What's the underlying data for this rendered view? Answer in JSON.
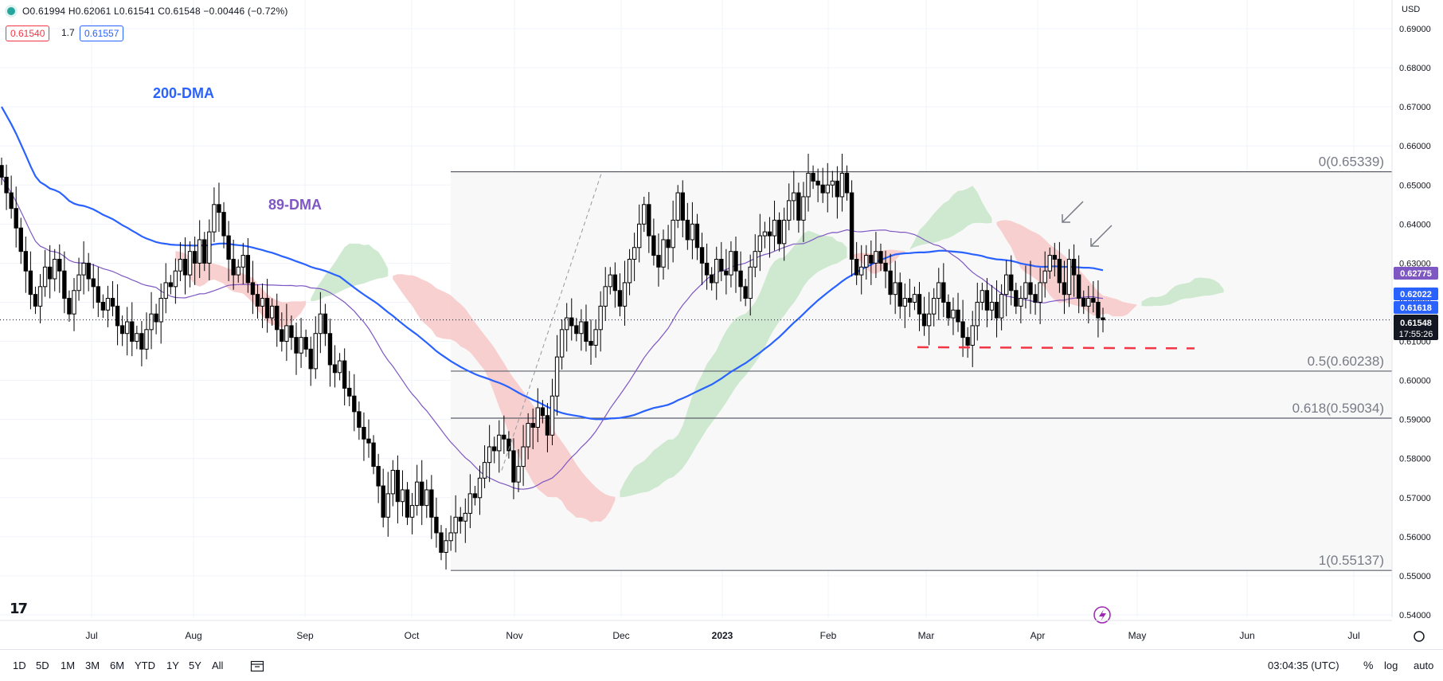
{
  "header": {
    "ohlc": "O0.61994 H0.62061 L0.61541 C0.61548 −0.00446 (−0.72%)",
    "bid": "0.61540",
    "spread": "1.7",
    "ask": "0.61557",
    "currency": "USD"
  },
  "range_buttons": [
    "1D",
    "5D",
    "1M",
    "3M",
    "6M",
    "YTD",
    "1Y",
    "5Y",
    "All"
  ],
  "clock": "03:04:35 (UTC)",
  "scale_buttons": {
    "percent": "%",
    "log": "log",
    "auto": "auto"
  },
  "colors": {
    "up_candle": "#ffffff",
    "down_candle": "#000000",
    "dma200": "#2962ff",
    "dma89": "#7e57c2",
    "cloud_bear": "#f8c8c8",
    "cloud_bull": "#c8e6c9",
    "fib_line": "#787b86",
    "support_line": "#f23645"
  },
  "chart_data": {
    "type": "candlestick",
    "symbol_quote": "USD",
    "ylim": [
      0.54,
      0.692
    ],
    "y_ticks": [
      "0.69000",
      "0.68000",
      "0.67000",
      "0.66000",
      "0.65000",
      "0.64000",
      "0.63000",
      "0.62000",
      "0.61000",
      "0.60000",
      "0.59000",
      "0.58000",
      "0.57000",
      "0.56000",
      "0.55000",
      "0.54000"
    ],
    "x_ticks": [
      "Jul",
      "Aug",
      "Sep",
      "Oct",
      "Nov",
      "Dec",
      "2023",
      "Feb",
      "Mar",
      "Apr",
      "May",
      "Jun",
      "Jul"
    ],
    "x_range": [
      "2022-06-01",
      "2023-07-15"
    ],
    "annotations": {
      "dma200_label": "200-DMA",
      "dma89_label": "89-DMA"
    },
    "fibonacci": [
      {
        "label": "0(0.65339)",
        "value": 0.65339
      },
      {
        "label": "0.5(0.60238)",
        "value": 0.60238
      },
      {
        "label": "0.618(0.59034)",
        "value": 0.59034
      },
      {
        "label": "1(0.55137)",
        "value": 0.55137
      }
    ],
    "price_labels": [
      {
        "value": "0.62775",
        "kind": "dma89"
      },
      {
        "value": "0.62022",
        "kind": "cloud"
      },
      {
        "value": "0.61618",
        "kind": "dma200"
      },
      {
        "value": "0.61548",
        "kind": "last"
      },
      {
        "value": "17:55:26",
        "kind": "countdown"
      }
    ],
    "last_price": 0.61548,
    "support_level": 0.6085,
    "candles_close": [
      0.652,
      0.648,
      0.644,
      0.639,
      0.633,
      0.628,
      0.622,
      0.619,
      0.624,
      0.629,
      0.626,
      0.631,
      0.628,
      0.621,
      0.617,
      0.623,
      0.627,
      0.63,
      0.626,
      0.624,
      0.62,
      0.618,
      0.621,
      0.619,
      0.614,
      0.612,
      0.615,
      0.61,
      0.612,
      0.608,
      0.613,
      0.617,
      0.615,
      0.621,
      0.625,
      0.624,
      0.628,
      0.631,
      0.627,
      0.633,
      0.63,
      0.636,
      0.63,
      0.638,
      0.645,
      0.643,
      0.637,
      0.631,
      0.627,
      0.629,
      0.632,
      0.625,
      0.622,
      0.619,
      0.621,
      0.616,
      0.619,
      0.613,
      0.61,
      0.614,
      0.611,
      0.607,
      0.611,
      0.608,
      0.603,
      0.612,
      0.617,
      0.612,
      0.604,
      0.602,
      0.605,
      0.598,
      0.596,
      0.592,
      0.588,
      0.585,
      0.584,
      0.578,
      0.573,
      0.565,
      0.571,
      0.577,
      0.569,
      0.572,
      0.565,
      0.568,
      0.574,
      0.568,
      0.572,
      0.565,
      0.561,
      0.556,
      0.559,
      0.561,
      0.565,
      0.564,
      0.566,
      0.571,
      0.57,
      0.575,
      0.579,
      0.583,
      0.582,
      0.586,
      0.585,
      0.582,
      0.574,
      0.578,
      0.583,
      0.589,
      0.588,
      0.593,
      0.591,
      0.586,
      0.596,
      0.606,
      0.613,
      0.616,
      0.614,
      0.612,
      0.615,
      0.61,
      0.609,
      0.613,
      0.619,
      0.624,
      0.627,
      0.623,
      0.619,
      0.625,
      0.631,
      0.634,
      0.64,
      0.645,
      0.637,
      0.632,
      0.629,
      0.636,
      0.634,
      0.641,
      0.648,
      0.641,
      0.636,
      0.64,
      0.634,
      0.63,
      0.627,
      0.625,
      0.631,
      0.628,
      0.627,
      0.633,
      0.628,
      0.624,
      0.621,
      0.629,
      0.633,
      0.637,
      0.638,
      0.637,
      0.641,
      0.635,
      0.641,
      0.646,
      0.648,
      0.641,
      0.647,
      0.653,
      0.651,
      0.65,
      0.648,
      0.65,
      0.651,
      0.647,
      0.653,
      0.648,
      0.631,
      0.627,
      0.629,
      0.632,
      0.63,
      0.633,
      0.63,
      0.628,
      0.622,
      0.625,
      0.619,
      0.621,
      0.62,
      0.622,
      0.617,
      0.614,
      0.617,
      0.621,
      0.625,
      0.62,
      0.616,
      0.618,
      0.615,
      0.611,
      0.609,
      0.614,
      0.62,
      0.623,
      0.618,
      0.62,
      0.616,
      0.622,
      0.627,
      0.623,
      0.619,
      0.621,
      0.625,
      0.622,
      0.62,
      0.625,
      0.628,
      0.632,
      0.631,
      0.625,
      0.622,
      0.631,
      0.627,
      0.621,
      0.619,
      0.621,
      0.62,
      0.616,
      0.6155
    ]
  }
}
